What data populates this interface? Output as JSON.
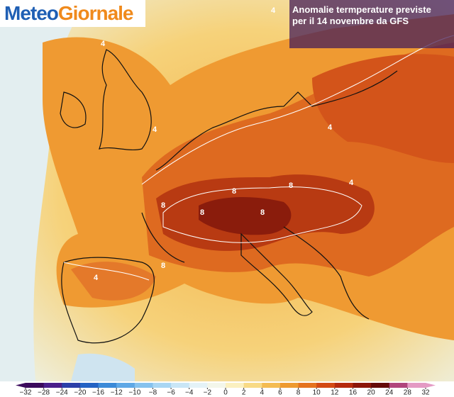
{
  "header": {
    "logo_part1": "Meteo",
    "logo_part2": "Giornale",
    "title_line1": "Anomalie termperature previste",
    "title_line2": "per il 14 novembre da GFS"
  },
  "contour_labels": [
    "4",
    "4",
    "4",
    "4",
    "8",
    "8",
    "8",
    "8",
    "8",
    "8",
    "4",
    "4"
  ],
  "colorbar": {
    "ticks": [
      {
        "value": -32,
        "label": "−32"
      },
      {
        "value": -28,
        "label": "−28"
      },
      {
        "value": -24,
        "label": "−24"
      },
      {
        "value": -20,
        "label": "−20"
      },
      {
        "value": -16,
        "label": "−16"
      },
      {
        "value": -12,
        "label": "−12"
      },
      {
        "value": -10,
        "label": "−10"
      },
      {
        "value": -8,
        "label": "−8"
      },
      {
        "value": -6,
        "label": "−6"
      },
      {
        "value": -4,
        "label": "−4"
      },
      {
        "value": -2,
        "label": "−2"
      },
      0,
      2,
      4,
      6,
      8,
      10,
      12,
      16,
      20,
      24,
      28,
      32
    ],
    "colors": [
      "#3b0a5c",
      "#4a1f8a",
      "#2b3fa8",
      "#2463c4",
      "#3c8ad8",
      "#5fa8e6",
      "#86c2ee",
      "#a9d6f3",
      "#c9e6f6",
      "#e4f2f7",
      "#f3f6ea",
      "#fbf0c0",
      "#f8da86",
      "#f4bc52",
      "#ee9a30",
      "#e5731f",
      "#d34a14",
      "#b52a0d",
      "#8c1609",
      "#650a08",
      "#b0457c",
      "#e49ac4"
    ]
  }
}
